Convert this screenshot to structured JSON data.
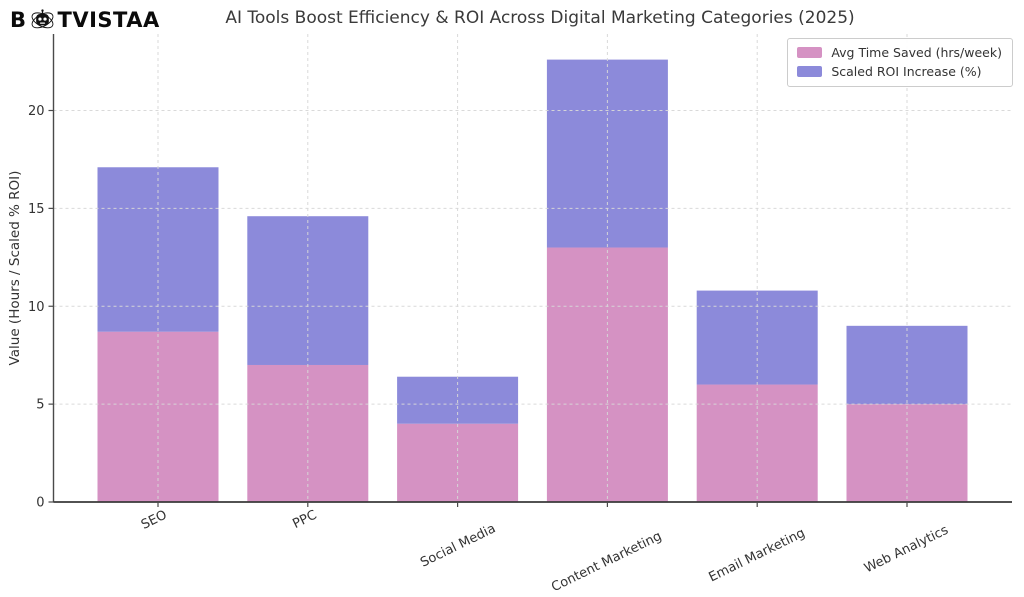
{
  "logo": {
    "prefix": "B",
    "suffix": "TVISTAA",
    "icon": "robot-icon"
  },
  "header": {
    "title": "AI Tools Boost Efficiency & ROI Across Digital Marketing Categories (2025)"
  },
  "legend": {
    "items": [
      {
        "label": "Avg Time Saved (hrs/week)",
        "color": "#d592c3"
      },
      {
        "label": "Scaled ROI Increase (%)",
        "color": "#8c8ada"
      }
    ]
  },
  "chart_data": {
    "type": "bar",
    "stacked": true,
    "title": "AI Tools Boost Efficiency & ROI Across Digital Marketing Categories (2025)",
    "xlabel": "",
    "ylabel": "Value (Hours / Scaled % ROI)",
    "categories": [
      "SEO",
      "PPC",
      "Social Media",
      "Content Marketing",
      "Email Marketing",
      "Web Analytics"
    ],
    "series": [
      {
        "name": "Avg Time Saved (hrs/week)",
        "color": "#d592c3",
        "values": [
          8.7,
          7.0,
          4.0,
          13.0,
          6.0,
          5.0
        ]
      },
      {
        "name": "Scaled ROI Increase (%)",
        "color": "#8c8ada",
        "values": [
          8.4,
          7.6,
          2.4,
          9.6,
          4.8,
          4.0
        ]
      }
    ],
    "stack_totals": [
      17.1,
      14.6,
      6.4,
      22.6,
      10.8,
      9.0
    ],
    "ylim": [
      0,
      23.7
    ],
    "yticks": [
      0,
      5,
      10,
      15,
      20
    ],
    "grid": true,
    "grid_style": "dashed",
    "legend_position": "upper right",
    "colors": {
      "grid": "#d8d8d8",
      "spine": "#3a3a3a",
      "tick_label": "#333333",
      "title": "#3a3a3a"
    }
  }
}
